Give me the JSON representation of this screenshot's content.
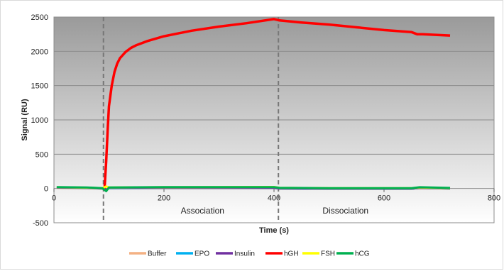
{
  "chart_data": {
    "type": "line",
    "xlabel": "Time (s)",
    "ylabel": "Signal (RU)",
    "xlim": [
      0,
      800
    ],
    "ylim": [
      -500,
      2500
    ],
    "xticks": [
      0,
      200,
      400,
      600,
      800
    ],
    "yticks": [
      -500,
      0,
      500,
      1000,
      1500,
      2000,
      2500
    ],
    "grid": true,
    "legend_position": "bottom",
    "annotations": [
      {
        "text": "Association",
        "x": 270
      },
      {
        "text": "Dissociation",
        "x": 530
      }
    ],
    "vlines": [
      90,
      408
    ],
    "series": [
      {
        "name": "Buffer",
        "color": "#f4b183",
        "x": [
          5,
          60,
          88,
          95,
          100,
          200,
          300,
          400,
          410,
          500,
          600,
          650,
          665,
          720
        ],
        "y": [
          10,
          5,
          0,
          -15,
          5,
          5,
          5,
          5,
          0,
          0,
          0,
          0,
          5,
          0
        ]
      },
      {
        "name": "EPO",
        "color": "#00b0f0",
        "x": [
          5,
          60,
          88,
          95,
          100,
          200,
          300,
          400,
          410,
          500,
          600,
          650,
          665,
          720
        ],
        "y": [
          15,
          10,
          0,
          -25,
          5,
          8,
          8,
          8,
          0,
          -5,
          -5,
          -5,
          10,
          -2
        ]
      },
      {
        "name": "Insulin",
        "color": "#7030a0",
        "x": [
          5,
          60,
          88,
          95,
          100,
          200,
          300,
          400,
          410,
          500,
          600,
          650,
          665,
          720
        ],
        "y": [
          12,
          8,
          0,
          -20,
          8,
          10,
          10,
          10,
          0,
          -3,
          -3,
          -3,
          8,
          0
        ]
      },
      {
        "name": "hGH",
        "color": "#ff0000",
        "x": [
          92,
          95,
          98,
          100,
          105,
          110,
          115,
          120,
          130,
          140,
          150,
          170,
          200,
          250,
          300,
          350,
          400,
          410,
          450,
          500,
          550,
          600,
          650,
          660,
          670,
          720
        ],
        "y": [
          0,
          400,
          900,
          1200,
          1500,
          1700,
          1820,
          1900,
          1990,
          2050,
          2090,
          2150,
          2220,
          2300,
          2360,
          2410,
          2470,
          2450,
          2420,
          2390,
          2350,
          2310,
          2280,
          2250,
          2250,
          2230
        ]
      },
      {
        "name": "FSH",
        "color": "#ffff00",
        "x": [
          5,
          60,
          88,
          95,
          100,
          200,
          300,
          400,
          410,
          500,
          600,
          650,
          665,
          720
        ],
        "y": [
          18,
          12,
          5,
          30,
          15,
          18,
          20,
          22,
          10,
          5,
          5,
          5,
          15,
          5
        ]
      },
      {
        "name": "hCG",
        "color": "#00b050",
        "x": [
          5,
          60,
          88,
          95,
          100,
          200,
          300,
          400,
          410,
          500,
          600,
          650,
          665,
          720
        ],
        "y": [
          20,
          15,
          5,
          -40,
          15,
          20,
          20,
          20,
          10,
          5,
          5,
          5,
          18,
          8
        ]
      }
    ]
  }
}
